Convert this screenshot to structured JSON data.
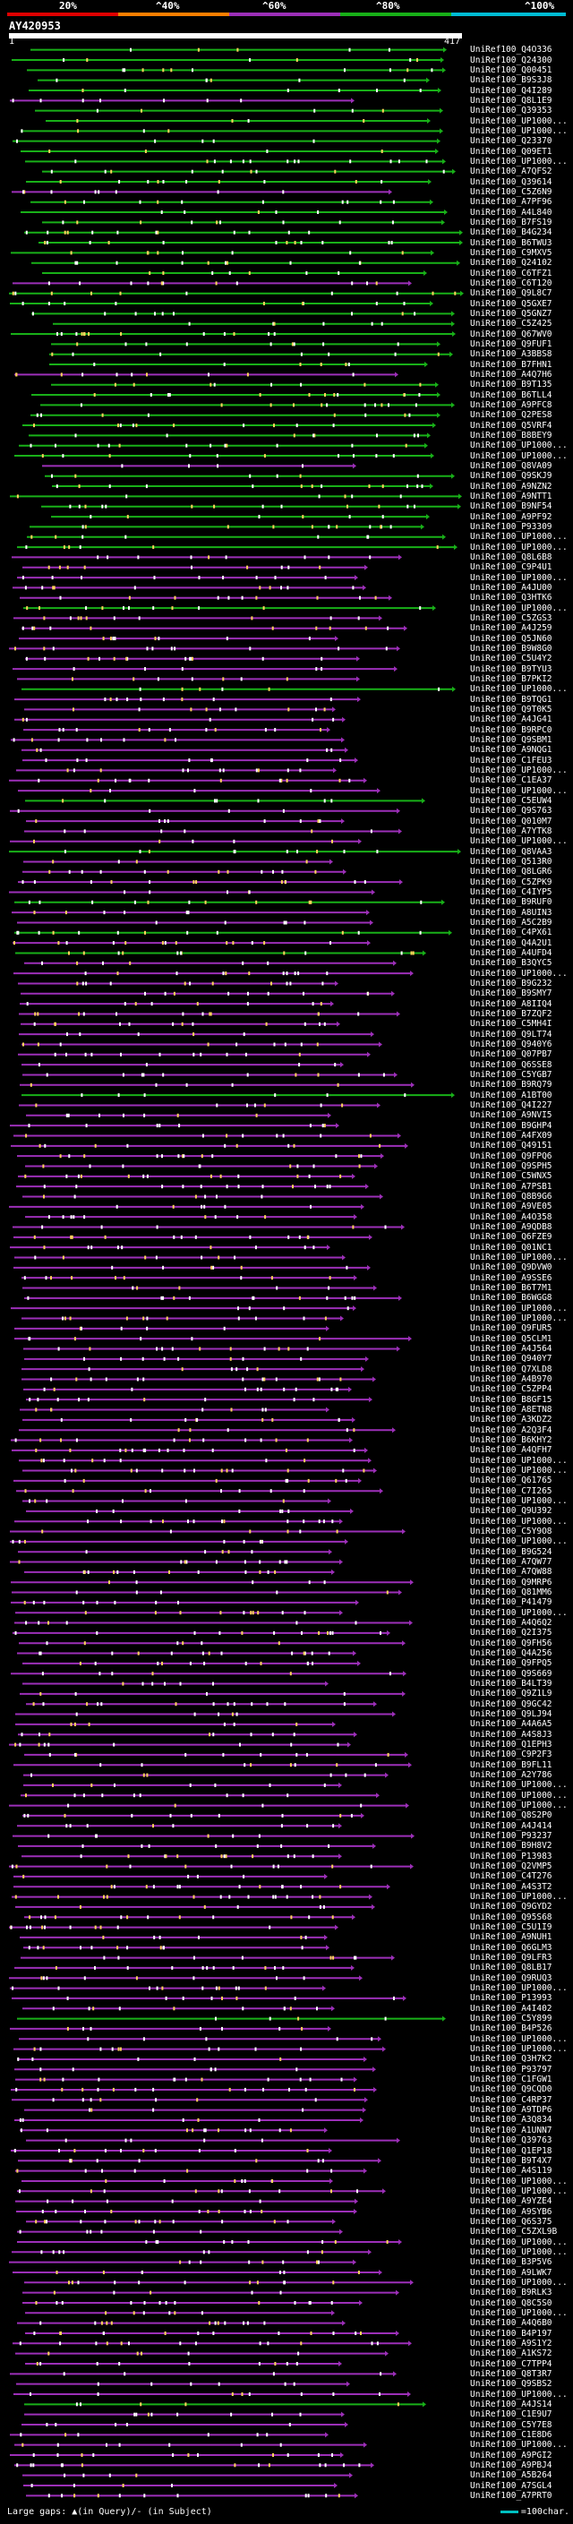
{
  "legend": {
    "labels": [
      "20%",
      "^40%",
      "^60%",
      "^80%",
      "^100%"
    ],
    "colors": [
      "#e00000",
      "#ff7f00",
      "#9c2fb8",
      "#18b018",
      "#00bcd4"
    ]
  },
  "query": {
    "title": "AY420953",
    "start": "1",
    "end": "417"
  },
  "hits": [
    "UniRef100_Q4O336",
    "UniRef100_Q24300",
    "UniRef100_Q00451",
    "UniRef100_B9S3J8",
    "UniRef100_Q4I289",
    "UniRef100_Q8L1E9",
    "UniRef100_Q39353",
    "UniRef100_UP1000...",
    "UniRef100_UP1000...",
    "UniRef100_Q23370",
    "UniRef100_Q09ET1",
    "UniRef100_UP1000...",
    "UniRef100_A7QFS2",
    "UniRef100_Q39614",
    "UniRef100_C5Z6N9",
    "UniRef100_A7PF96",
    "UniRef100_A4L840",
    "UniRef100_B7FS19",
    "UniRef100_B4G234",
    "UniRef100_B6TWU3",
    "UniRef100_C9MXV5",
    "UniRef100_Q24102",
    "UniRef100_C6TFZ1",
    "UniRef100_C6T120",
    "UniRef100_Q9L8C7",
    "UniRef100_Q5GXE7",
    "UniRef100_Q5GNZ7",
    "UniRef100_C5Z425",
    "UniRef100_Q67WV0",
    "UniRef100_Q9FUF1",
    "UniRef100_A3BBS8",
    "UniRef100_B7FHN1",
    "UniRef100_A4Q7H6",
    "UniRef100_B9T135",
    "UniRef100_B6TLL4",
    "UniRef100_A9PFC8",
    "UniRef100_Q2PES8",
    "UniRef100_Q5VRF4",
    "UniRef100_B8BEY9",
    "UniRef100_UP1000...",
    "UniRef100_UP1000...",
    "UniRef100_Q8VA09",
    "UniRef100_Q9SKJ9",
    "UniRef100_A9NZN2",
    "UniRef100_A9NTT1",
    "UniRef100_B9NF54",
    "UniRef100_A9PF92",
    "UniRef100_P93309",
    "UniRef100_UP1000...",
    "UniRef100_UP1000...",
    "UniRef100_Q8L6B8",
    "UniRef100_C9P4U1",
    "UniRef100_UP1000...",
    "UniRef100_A4JU00",
    "UniRef100_Q3HTK6",
    "UniRef100_UP1000...",
    "UniRef100_C5ZGS3",
    "UniRef100_A4J259",
    "UniRef100_Q5JN60",
    "UniRef100_B9W8G0",
    "UniRef100_C5U4Y2",
    "UniRef100_B9TYU3",
    "UniRef100_B7PKI2",
    "UniRef100_UP1000...",
    "UniRef100_B9TQG1",
    "UniRef100_Q9T0K5",
    "UniRef100_A4JG41",
    "UniRef100_B9RPC0",
    "UniRef100_Q9SBM1",
    "UniRef100_A9NQG1",
    "UniRef100_C1FEU3",
    "UniRef100_UP1000...",
    "UniRef100_C1EA37",
    "UniRef100_UP1000...",
    "UniRef100_C5EUW4",
    "UniRef100_Q9S763",
    "UniRef100_Q010M7",
    "UniRef100_A7YTK8",
    "UniRef100_UP1000...",
    "UniRef100_Q8VAA3",
    "UniRef100_Q513R0",
    "UniRef100_Q8LGR6",
    "UniRef100_C5ZPK9",
    "UniRef100_C4IYP5",
    "UniRef100_B9RUF0",
    "UniRef100_A8UIN3",
    "UniRef100_A5C2B9",
    "UniRef100_C4PX61",
    "UniRef100_Q4A2U1",
    "UniRef100_A4UFD4",
    "UniRef100_B3QYC5",
    "UniRef100_UP1000...",
    "UniRef100_B9G232",
    "UniRef100_B9SMY7",
    "UniRef100_A8IIQ4",
    "UniRef100_B7ZQF2",
    "UniRef100_C5MH4I",
    "UniRef100_Q9LT74",
    "UniRef100_Q940Y6",
    "UniRef100_Q07PB7",
    "UniRef100_Q6SSE8",
    "UniRef100_C5YGB7",
    "UniRef100_B9RQ79",
    "UniRef100_A1BT00",
    "UniRef100_Q4I227",
    "UniRef100_A9NVI5",
    "UniRef100_B9GHP4",
    "UniRef100_A4FX09",
    "UniRef100_Q49151",
    "UniRef100_Q9FPQ6",
    "UniRef100_Q9SPH5",
    "UniRef100_C5WNX5",
    "UniRef100_A7PSB1",
    "UniRef100_Q8B9G6",
    "UniRef100_A9VE05",
    "UniRef100_A4O358",
    "UniRef100_A9QDB8",
    "UniRef100_Q6FZE9",
    "UniRef100_Q01NC1",
    "UniRef100_UP1000...",
    "UniRef100_Q9DVW0",
    "UniRef100_A9SSE6",
    "UniRef100_B6T7M1",
    "UniRef100_B6WGG8",
    "UniRef100_UP1000...",
    "UniRef100_UP1000...",
    "UniRef100_Q9FUR5",
    "UniRef100_Q5CLM1",
    "UniRef100_A4J564",
    "UniRef100_Q940Y7",
    "UniRef100_Q7XLD8",
    "UniRef100_A4B970",
    "UniRef100_C5ZPP4",
    "UniRef100_B8GF15",
    "UniRef100_A8ETN8",
    "UniRef100_A3KDZ2",
    "UniRef100_A2Q3F4",
    "UniRef100_B6KHY2",
    "UniRef100_A4QFH7",
    "UniRef100_UP1000...",
    "UniRef100_UP1000...",
    "UniRef100_Q61765",
    "UniRef100_C7I265",
    "UniRef100_UP1000...",
    "UniRef100_Q9U392",
    "UniRef100_UP1000...",
    "UniRef100_C5Y9O8",
    "UniRef100_UP1000...",
    "UniRef100_B9G524",
    "UniRef100_A7QW77",
    "UniRef100_A7QW88",
    "UniRef100_Q9MRP6",
    "UniRef100_Q81MM6",
    "UniRef100_P41479",
    "UniRef100_UP1000...",
    "UniRef100_A4Q6Q2",
    "UniRef100_Q2I375",
    "UniRef100_Q9FH56",
    "UniRef100_Q4A256",
    "UniRef100_Q9FPQ5",
    "UniRef100_Q9S669",
    "UniRef100_B4LT39",
    "UniRef100_Q9Z1L9",
    "UniRef100_Q9GC42",
    "UniRef100_Q9LJ94",
    "UniRef100_A4A6A5",
    "UniRef100_A4S8J3",
    "UniRef100_Q1EPH3",
    "UniRef100_C9P2F3",
    "UniRef100_B9FL11",
    "UniRef100_A2Y786",
    "UniRef100_UP1000...",
    "UniRef100_UP1000...",
    "UniRef100_UP1000...",
    "UniRef100_Q8S2P0",
    "UniRef100_A4J414",
    "UniRef100_P93237",
    "UniRef100_B9H8V2",
    "UniRef100_P13983",
    "UniRef100_Q2VMP5",
    "UniRef100_C4T276",
    "UniRef100_A4S3T2",
    "UniRef100_UP1000...",
    "UniRef100_Q9GYD2",
    "UniRef100_Q95S68",
    "UniRef100_C5U1I9",
    "UniRef100_A9NUH1",
    "UniRef100_Q6GLM3",
    "UniRef100_Q9LFR3",
    "UniRef100_Q8LB17",
    "UniRef100_Q9RUQ3",
    "UniRef100_UP1000...",
    "UniRef100_P13993",
    "UniRef100_A4I402",
    "UniRef100_C5Y899",
    "UniRef100_B4P526",
    "UniRef100_UP1000...",
    "UniRef100_UP1000...",
    "UniRef100_Q3H7K2",
    "UniRef100_P93797",
    "UniRef100_C1FGW1",
    "UniRef100_Q9CQD0",
    "UniRef100_C4RP37",
    "UniRef100_A9TDP6",
    "UniRef100_A3Q834",
    "UniRef100_A1UNN7",
    "UniRef100_Q39763",
    "UniRef100_Q1EP18",
    "UniRef100_B9T4X7",
    "UniRef100_A4S119",
    "UniRef100_UP1000...",
    "UniRef100_UP1000...",
    "UniRef100_A9YZE4",
    "UniRef100_A9SYB6",
    "UniRef100_Q6S375",
    "UniRef100_C5ZXL9B",
    "UniRef100_UP1000...",
    "UniRef100_UP1000...",
    "UniRef100_B3P5V6",
    "UniRef100_A9LWK7",
    "UniRef100_UP1000...",
    "UniRef100_B9RLK3",
    "UniRef100_Q8C5S0",
    "UniRef100_UP1000...",
    "UniRef100_A4Q6B0",
    "UniRef100_B4P197",
    "UniRef100_A9S1Y2",
    "UniRef100_A1KS72",
    "UniRef100_C7TPP4",
    "UniRef100_Q8T3R7",
    "UniRef100_Q9SBS2",
    "UniRef100_UP1000...",
    "UniRef100_A4JS14",
    "UniRef100_C1E9U7",
    "UniRef100_C5Y7E8",
    "UniRef100_C1E8D6",
    "UniRef100_UP1000...",
    "UniRef100_A9PGI2",
    "UniRef100_A9PBJ4",
    "UniRef100_A5B264",
    "UniRef100_A7SGL4",
    "UniRef100_A7PRT0"
  ],
  "footer": {
    "left": "Large gaps: ▲(in Query)/- (in Subject)",
    "right": "=100char."
  }
}
